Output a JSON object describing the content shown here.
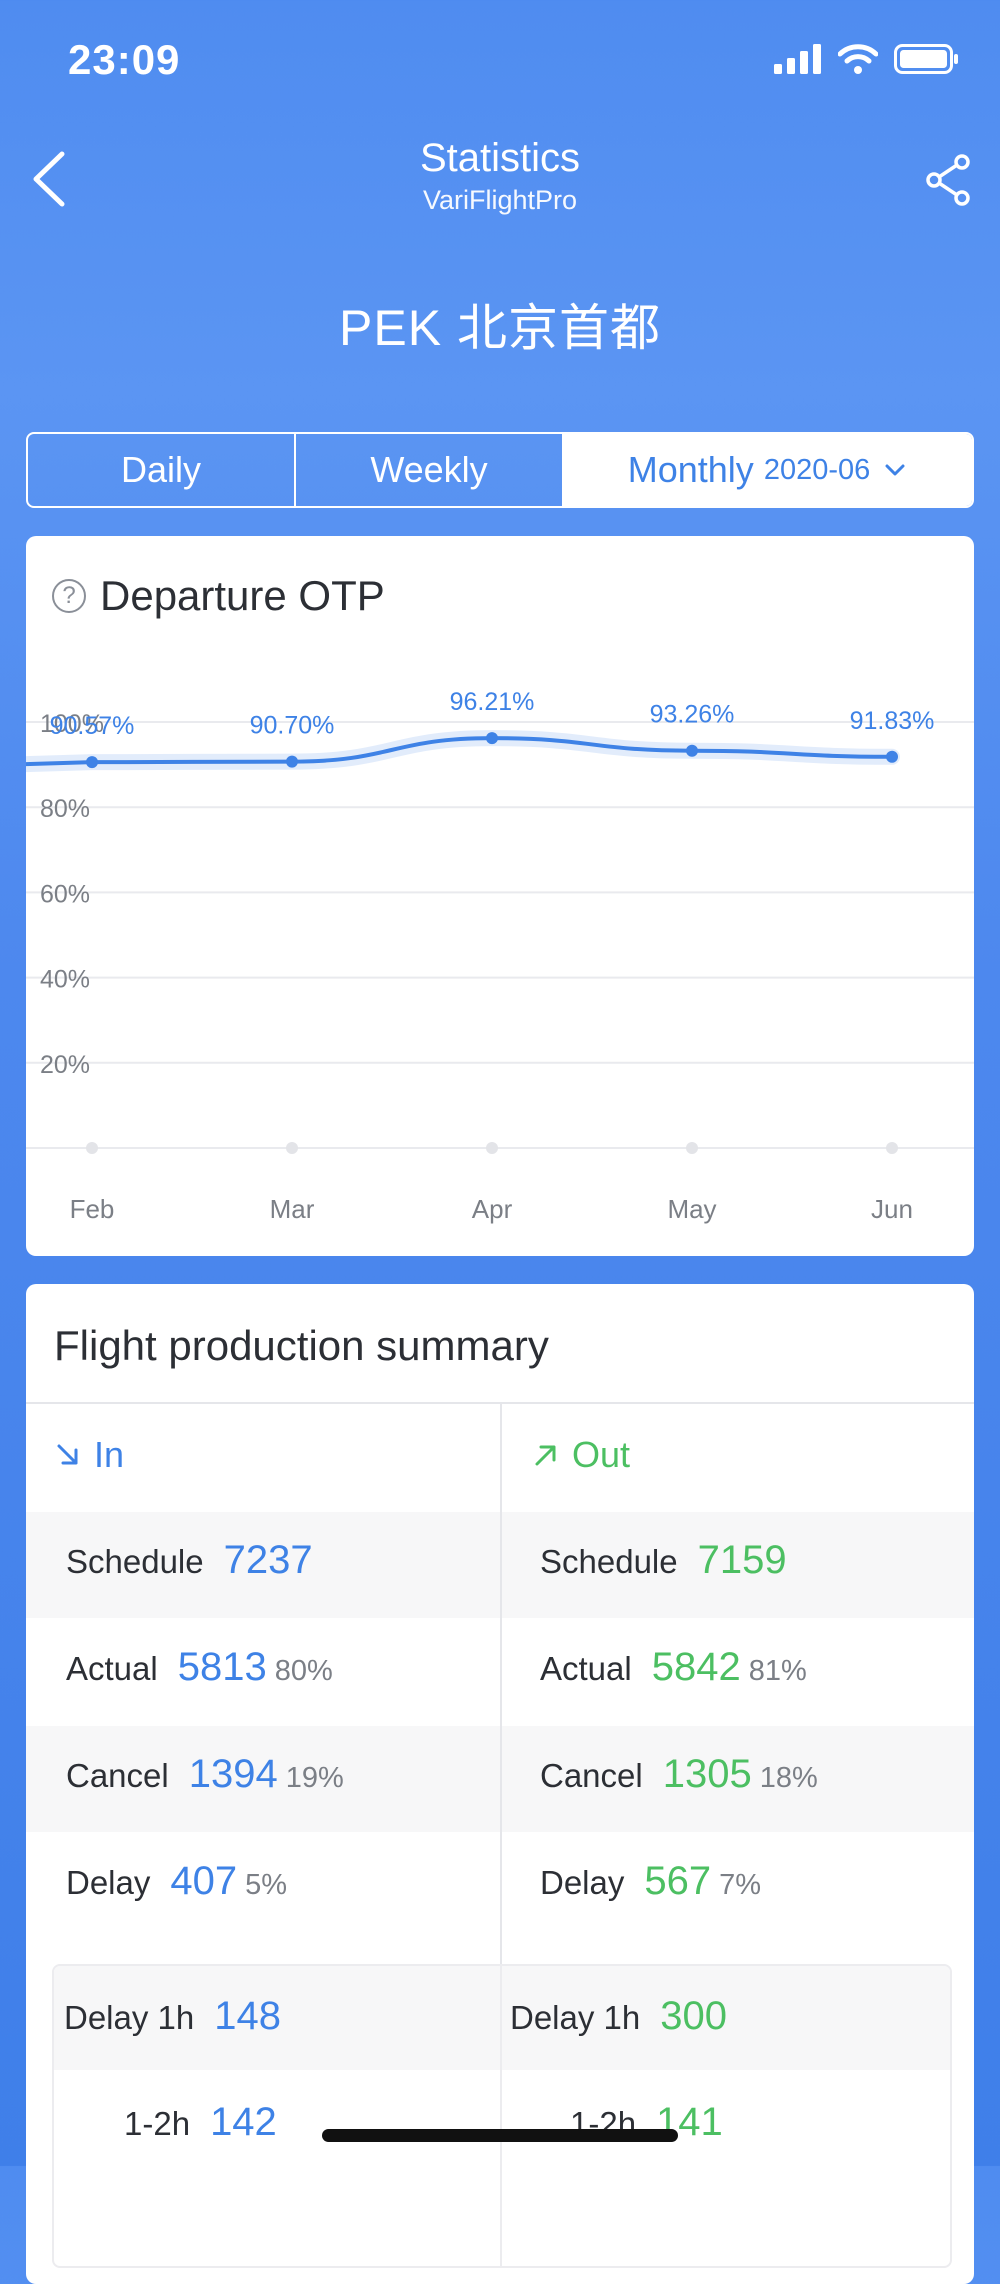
{
  "status_bar": {
    "time": "23:09"
  },
  "nav": {
    "title": "Statistics",
    "subtitle": "VariFlightPro"
  },
  "airport": "PEK 北京首都",
  "segments": {
    "daily": "Daily",
    "weekly": "Weekly",
    "monthly": "Monthly",
    "monthly_date": "2020-06"
  },
  "otp": {
    "title": "Departure OTP",
    "help_icon_text": "?"
  },
  "chart_data": {
    "type": "line",
    "categories": [
      "Feb",
      "Mar",
      "Apr",
      "May",
      "Jun"
    ],
    "values": [
      90.57,
      90.7,
      96.21,
      93.26,
      91.83
    ],
    "data_labels": [
      "90.57%",
      "90.70%",
      "96.21%",
      "93.26%",
      "91.83%"
    ],
    "y_ticks": [
      "20%",
      "40%",
      "60%",
      "80%",
      "100%"
    ],
    "ylim": [
      0,
      100
    ],
    "grid": true,
    "line_color": "#3e82e6"
  },
  "summary": {
    "title": "Flight production summary",
    "in": {
      "label": "In",
      "rows": [
        {
          "label": "Schedule",
          "value": "7237",
          "pct": ""
        },
        {
          "label": "Actual",
          "value": "5813",
          "pct": "80%"
        },
        {
          "label": "Cancel",
          "value": "1394",
          "pct": "19%"
        },
        {
          "label": "Delay",
          "value": "407",
          "pct": "5%"
        }
      ],
      "delay_breakdown": [
        {
          "label": "Delay 1h",
          "value": "148"
        },
        {
          "label": "1-2h",
          "value": "142"
        }
      ]
    },
    "out": {
      "label": "Out",
      "rows": [
        {
          "label": "Schedule",
          "value": "7159",
          "pct": ""
        },
        {
          "label": "Actual",
          "value": "5842",
          "pct": "81%"
        },
        {
          "label": "Cancel",
          "value": "1305",
          "pct": "18%"
        },
        {
          "label": "Delay",
          "value": "567",
          "pct": "7%"
        }
      ],
      "delay_breakdown": [
        {
          "label": "Delay 1h",
          "value": "300"
        },
        {
          "label": "1-2h",
          "value": "141"
        }
      ]
    }
  },
  "colors": {
    "in": "#3e82e6",
    "out": "#4cbf62",
    "background": "#4f8cf0"
  },
  "icons": {
    "back": "chevron-left-icon",
    "share": "share-icon",
    "in": "arrow-down-right-icon",
    "out": "arrow-up-right-icon",
    "dropdown": "chevron-down-icon",
    "help": "question-circle-icon"
  }
}
